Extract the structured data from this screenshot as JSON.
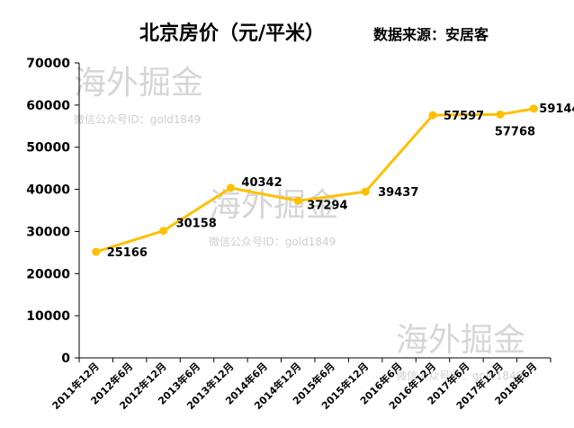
{
  "chart_data": {
    "type": "line",
    "title": "北京房价（元/平米）",
    "source": "数据来源：安居客",
    "categories": [
      "2011年12月",
      "2012年6月",
      "2012年12月",
      "2013年6月",
      "2013年12月",
      "2014年6月",
      "2014年12月",
      "2015年6月",
      "2015年12月",
      "2016年6月",
      "2016年12月",
      "2017年6月",
      "2017年12月",
      "2018年6月"
    ],
    "yticks": [
      "0",
      "10000",
      "20000",
      "30000",
      "40000",
      "50000",
      "60000",
      "70000"
    ],
    "ylim": [
      0,
      70000
    ],
    "points": [
      {
        "x": "2011年12月",
        "y": 25166,
        "label": "25166"
      },
      {
        "x": "2012年12月",
        "y": 30158,
        "label": "30158"
      },
      {
        "x": "2013年12月",
        "y": 40342,
        "label": "40342"
      },
      {
        "x": "2014年12月",
        "y": 37294,
        "label": "37294"
      },
      {
        "x": "2015年12月",
        "y": 39437,
        "label": "39437"
      },
      {
        "x": "2016年12月",
        "y": 57597,
        "label": "57597"
      },
      {
        "x": "2017年12月",
        "y": 57768,
        "label": "57768"
      },
      {
        "x": "2018年6月",
        "y": 59144,
        "label": "59144"
      }
    ],
    "line_color": "#FFC000",
    "grid": false,
    "legend": "none"
  },
  "watermark": {
    "brand": "海外掘金",
    "account": "微信公众号ID：gold1849"
  }
}
